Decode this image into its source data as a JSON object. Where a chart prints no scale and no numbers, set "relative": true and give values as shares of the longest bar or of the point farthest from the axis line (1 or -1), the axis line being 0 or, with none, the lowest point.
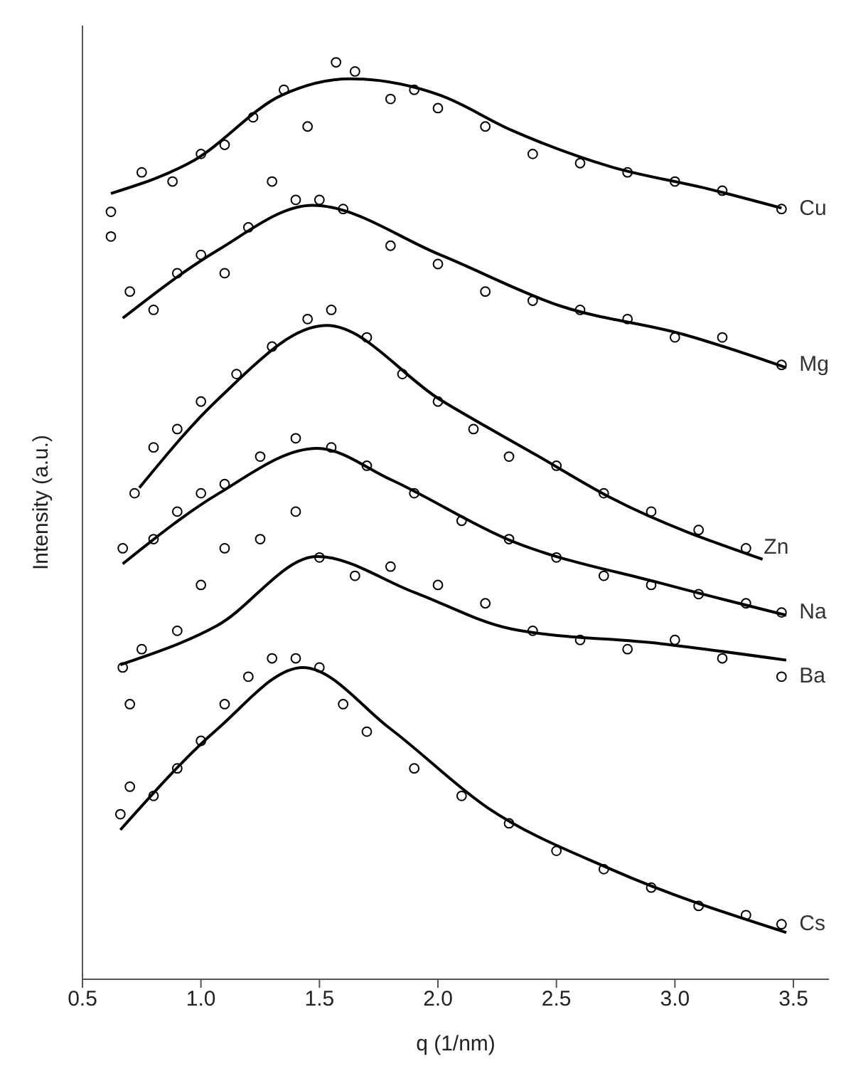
{
  "chart_data": {
    "type": "scatter",
    "xlabel": "q (1/nm)",
    "ylabel": "Intensity (a.u.)",
    "relative": true,
    "xlim": [
      0.5,
      3.65
    ],
    "xticks": [
      {
        "value": 0.5,
        "label": "0.5"
      },
      {
        "value": 1,
        "label": "1.0"
      },
      {
        "value": 1.5,
        "label": "1.5"
      },
      {
        "value": 2,
        "label": "2.0"
      },
      {
        "value": 2.5,
        "label": "2.5"
      },
      {
        "value": 3,
        "label": "3.0"
      },
      {
        "value": 3.5,
        "label": "3.5"
      }
    ],
    "legend": false,
    "series": [
      {
        "name": "Cu",
        "color": "#000000",
        "marker": "circle",
        "x": [
          0.62,
          0.75,
          0.88,
          1.0,
          1.1,
          1.22,
          1.35,
          1.45,
          1.57,
          1.65,
          1.8,
          1.9,
          2.0,
          2.2,
          2.4,
          2.6,
          2.8,
          3.0,
          3.2,
          3.45
        ],
        "values": [
          0.837,
          0.88,
          0.87,
          0.9,
          0.91,
          0.94,
          0.97,
          0.93,
          1.0,
          0.99,
          0.96,
          0.97,
          0.95,
          0.93,
          0.9,
          0.89,
          0.88,
          0.87,
          0.86,
          0.84
        ]
      },
      {
        "type": "line",
        "color": "#000000",
        "marker": "none",
        "x": [
          0.62,
          0.97,
          1.34,
          1.63,
          2.01,
          2.31,
          2.73,
          3.14,
          3.45
        ],
        "values": [
          0.857,
          0.893,
          0.964,
          0.982,
          0.964,
          0.926,
          0.886,
          0.862,
          0.841
        ]
      },
      {
        "name": "Mg",
        "color": "#000000",
        "marker": "circle",
        "x": [
          0.62,
          0.7,
          0.8,
          0.9,
          1.0,
          1.1,
          1.2,
          1.3,
          1.4,
          1.5,
          1.6,
          1.8,
          2.0,
          2.2,
          2.4,
          2.6,
          2.8,
          3.0,
          3.2,
          3.45
        ],
        "values": [
          0.81,
          0.75,
          0.73,
          0.77,
          0.79,
          0.77,
          0.82,
          0.87,
          0.85,
          0.85,
          0.84,
          0.8,
          0.78,
          0.75,
          0.74,
          0.73,
          0.72,
          0.7,
          0.7,
          0.67
        ]
      },
      {
        "type": "line",
        "color": "#000000",
        "marker": "none",
        "x": [
          0.67,
          1.07,
          1.47,
          2.01,
          2.52,
          3.04,
          3.47
        ],
        "values": [
          0.721,
          0.795,
          0.844,
          0.79,
          0.734,
          0.703,
          0.667
        ]
      },
      {
        "name": "Zn",
        "color": "#000000",
        "marker": "circle",
        "x": [
          0.72,
          0.8,
          0.9,
          1.0,
          1.15,
          1.3,
          1.45,
          1.55,
          1.7,
          1.85,
          2.0,
          2.15,
          2.3,
          2.5,
          2.7,
          2.9,
          3.1,
          3.3
        ],
        "values": [
          0.53,
          0.58,
          0.6,
          0.63,
          0.66,
          0.69,
          0.72,
          0.73,
          0.7,
          0.66,
          0.63,
          0.6,
          0.57,
          0.56,
          0.53,
          0.51,
          0.49,
          0.47
        ]
      },
      {
        "type": "line",
        "color": "#000000",
        "marker": "none",
        "x": [
          0.74,
          1.07,
          1.53,
          2.01,
          2.42,
          2.73,
          3.37
        ],
        "values": [
          0.536,
          0.632,
          0.713,
          0.632,
          0.571,
          0.525,
          0.458
        ]
      },
      {
        "name": "Na",
        "color": "#000000",
        "marker": "circle",
        "x": [
          0.67,
          0.8,
          0.9,
          1.0,
          1.1,
          1.25,
          1.4,
          1.55,
          1.7,
          1.9,
          2.1,
          2.3,
          2.5,
          2.7,
          2.9,
          3.1,
          3.3,
          3.45
        ],
        "values": [
          0.47,
          0.48,
          0.51,
          0.53,
          0.54,
          0.57,
          0.59,
          0.58,
          0.56,
          0.53,
          0.5,
          0.48,
          0.46,
          0.44,
          0.43,
          0.42,
          0.41,
          0.4
        ]
      },
      {
        "type": "line",
        "color": "#000000",
        "marker": "none",
        "x": [
          0.67,
          1.07,
          1.49,
          1.8,
          2.31,
          2.94,
          3.47
        ],
        "values": [
          0.453,
          0.529,
          0.579,
          0.545,
          0.478,
          0.432,
          0.397
        ]
      },
      {
        "name": "Ba",
        "color": "#000000",
        "marker": "circle",
        "x": [
          0.67,
          0.7,
          0.75,
          0.9,
          1.0,
          1.1,
          1.25,
          1.4,
          1.5,
          1.65,
          1.8,
          2.0,
          2.2,
          2.4,
          2.6,
          2.8,
          3.0,
          3.2,
          3.45
        ],
        "values": [
          0.34,
          0.3,
          0.36,
          0.38,
          0.43,
          0.47,
          0.48,
          0.51,
          0.46,
          0.44,
          0.45,
          0.43,
          0.41,
          0.38,
          0.37,
          0.36,
          0.37,
          0.35,
          0.33
        ]
      },
      {
        "type": "line",
        "color": "#000000",
        "marker": "none",
        "x": [
          0.66,
          1.07,
          1.49,
          1.9,
          2.31,
          2.94,
          3.47
        ],
        "values": [
          0.343,
          0.386,
          0.461,
          0.422,
          0.382,
          0.366,
          0.348
        ]
      },
      {
        "name": "Cs",
        "color": "#000000",
        "marker": "circle",
        "x": [
          0.66,
          0.7,
          0.8,
          0.9,
          1.0,
          1.1,
          1.2,
          1.3,
          1.4,
          1.5,
          1.6,
          1.7,
          1.9,
          2.1,
          2.3,
          2.5,
          2.7,
          2.9,
          3.1,
          3.3,
          3.45
        ],
        "values": [
          0.18,
          0.21,
          0.2,
          0.23,
          0.26,
          0.3,
          0.33,
          0.35,
          0.35,
          0.34,
          0.3,
          0.27,
          0.23,
          0.2,
          0.17,
          0.14,
          0.12,
          0.1,
          0.08,
          0.07,
          0.06
        ]
      },
      {
        "type": "line",
        "color": "#000000",
        "marker": "none",
        "x": [
          0.66,
          1.07,
          1.43,
          1.8,
          2.21,
          2.73,
          3.47
        ],
        "values": [
          0.163,
          0.273,
          0.34,
          0.273,
          0.187,
          0.12,
          0.051
        ]
      }
    ]
  }
}
